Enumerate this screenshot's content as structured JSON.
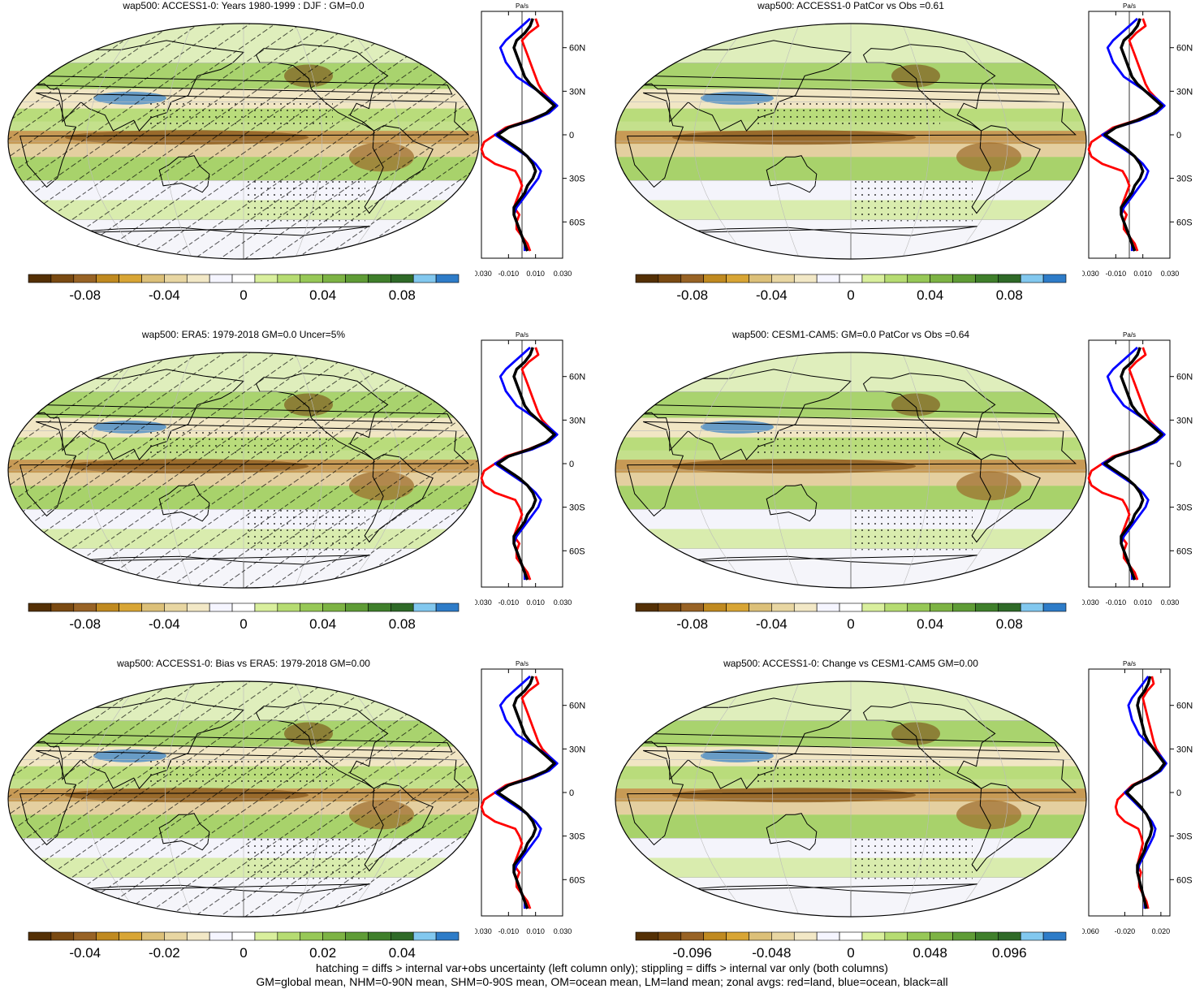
{
  "palette": [
    "#543005",
    "#7a4a12",
    "#986325",
    "#c08a20",
    "#d8a535",
    "#dcc079",
    "#e8d6a2",
    "#f2e8c6",
    "#f5f5ff",
    "#ffffff",
    "#d9ef9d",
    "#b6dc72",
    "#97c857",
    "#7db344",
    "#5f9c36",
    "#3f7f2b",
    "#2f6a28",
    "#82c8ef",
    "#2e7cc8"
  ],
  "line_colors": {
    "land": "#ff0000",
    "ocean": "#0000ff",
    "all": "#000000"
  },
  "zonal_unit": "Pa/s",
  "lat_ticks": [
    "60N",
    "30N",
    "0",
    "30S",
    "60S"
  ],
  "panels": [
    {
      "id": "p1",
      "title": "wap500: ACCESS1-0: Years 1980-1999 : DJF : GM=0.0",
      "cbar_labels": [
        "-0.08",
        "-0.04",
        "0",
        "0.04",
        "0.08"
      ],
      "zonal_ticks": [
        "-0.030",
        "-0.010",
        "0.010",
        "0.030"
      ],
      "hatched": true
    },
    {
      "id": "p2",
      "title": "wap500: ACCESS1-0 PatCor vs Obs =0.61",
      "cbar_labels": [
        "-0.08",
        "-0.04",
        "0",
        "0.04",
        "0.08"
      ],
      "zonal_ticks": [
        "-0.030",
        "-0.010",
        "0.010",
        "0.030"
      ],
      "hatched": false
    },
    {
      "id": "p3",
      "title": "wap500: ERA5: 1979-2018 GM=0.0 Uncer=5%",
      "cbar_labels": [
        "-0.08",
        "-0.04",
        "0",
        "0.04",
        "0.08"
      ],
      "zonal_ticks": [
        "-0.030",
        "-0.010",
        "0.010",
        "0.030"
      ],
      "hatched": true
    },
    {
      "id": "p4",
      "title": "wap500: CESM1-CAM5: GM=0.0 PatCor vs Obs =0.64",
      "cbar_labels": [
        "-0.08",
        "-0.04",
        "0",
        "0.04",
        "0.08"
      ],
      "zonal_ticks": [
        "-0.030",
        "-0.010",
        "0.010",
        "0.030"
      ],
      "hatched": false
    },
    {
      "id": "p5",
      "title": "wap500: ACCESS1-0: Bias vs ERA5: 1979-2018 GM=0.00",
      "cbar_labels": [
        "-0.04",
        "-0.02",
        "0",
        "0.02",
        "0.04"
      ],
      "zonal_ticks": [
        "-0.030",
        "-0.010",
        "0.010",
        "0.030"
      ],
      "hatched": true
    },
    {
      "id": "p6",
      "title": "wap500: ACCESS1-0: Change vs CESM1-CAM5 GM=0.00",
      "cbar_labels": [
        "-0.096",
        "-0.048",
        "0",
        "0.048",
        "0.096"
      ],
      "zonal_ticks": [
        "-0.060",
        "-0.020",
        "0.020"
      ],
      "hatched": false
    }
  ],
  "chart_data": {
    "type": "heatmap",
    "variable": "wap500",
    "zonal_profile": {
      "lat": [
        80,
        75,
        70,
        65,
        60,
        55,
        50,
        45,
        40,
        35,
        30,
        25,
        20,
        15,
        10,
        5,
        0,
        -5,
        -10,
        -15,
        -20,
        -25,
        -30,
        -35,
        -40,
        -45,
        -50,
        -55,
        -60,
        -65,
        -70,
        -75,
        -80
      ],
      "series": [
        {
          "name": "land",
          "values": [
            0.01,
            0.012,
            0.005,
            0.0,
            0.002,
            0.004,
            0.006,
            0.008,
            0.01,
            0.012,
            0.015,
            0.02,
            0.025,
            0.018,
            0.005,
            -0.012,
            -0.02,
            -0.028,
            -0.03,
            -0.028,
            -0.02,
            -0.005,
            -0.002,
            0.0,
            -0.002,
            -0.004,
            -0.006,
            -0.002,
            -0.004,
            -0.004,
            0.0,
            0.004,
            0.006
          ]
        },
        {
          "name": "ocean",
          "values": [
            0.006,
            0.0,
            -0.006,
            -0.012,
            -0.016,
            -0.014,
            -0.012,
            -0.008,
            -0.004,
            0.004,
            0.012,
            0.02,
            0.026,
            0.02,
            0.008,
            -0.01,
            -0.02,
            -0.012,
            -0.004,
            0.004,
            0.01,
            0.014,
            0.012,
            0.008,
            0.004,
            0.0,
            -0.004,
            -0.006,
            -0.004,
            -0.002,
            0.0,
            0.002,
            0.002
          ]
        },
        {
          "name": "all",
          "values": [
            0.008,
            0.006,
            0.002,
            -0.004,
            -0.006,
            -0.004,
            -0.002,
            0.0,
            0.002,
            0.006,
            0.012,
            0.018,
            0.024,
            0.018,
            0.006,
            -0.01,
            -0.018,
            -0.01,
            -0.002,
            0.004,
            0.008,
            0.01,
            0.008,
            0.004,
            0.002,
            -0.002,
            -0.006,
            -0.006,
            -0.004,
            -0.002,
            0.0,
            0.002,
            0.004
          ]
        }
      ]
    }
  },
  "footer": {
    "line1": "hatching = diffs > internal var+obs uncertainty (left column only); stippling = diffs > internal var only (both columns)",
    "line2": "GM=global mean, NHM=0-90N mean, SHM=0-90S mean, OM=ocean mean, LM=land mean; zonal avgs: red=land, blue=ocean, black=all"
  }
}
